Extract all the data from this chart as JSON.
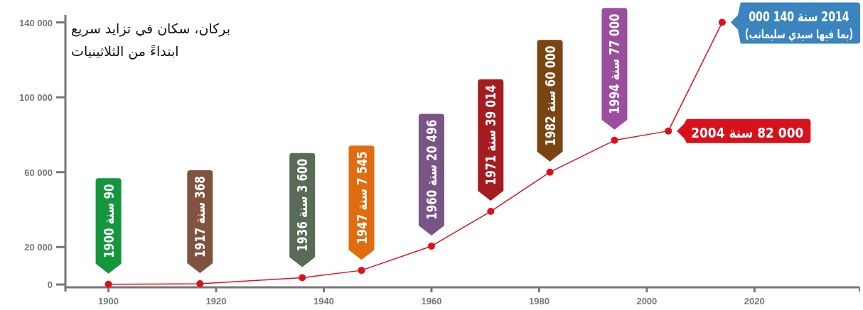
{
  "chart_data": {
    "type": "line",
    "title": "بركان، سكان في تزايد سريع\nابتداءً من الثلاثينيات",
    "x": [
      1900,
      1917,
      1936,
      1947,
      1960,
      1971,
      1982,
      1994,
      2004,
      2014
    ],
    "series": [
      {
        "color": "#e0101a",
        "values": [
          90,
          368,
          3600,
          7545,
          20496,
          39014,
          60000,
          77000,
          82000,
          140000
        ],
        "value_labels": [
          "90 سنة 1900",
          "368 سنة 1917",
          "3 600 سنة 1936",
          "7 545 سنة 1947",
          "20 496 سنة 1960",
          "39 014 سنة 1971",
          "60 000 سنة 1982",
          "77 000 سنة 1994",
          "82 000 سنة 2004",
          "2014 سنة 140 000\n(بما فيها سيدي سليمانب)"
        ]
      }
    ],
    "xlim": [
      1892,
      2039.5
    ],
    "ylim": [
      -1500,
      144000
    ],
    "xticks": [
      1900,
      1920,
      1940,
      1960,
      1980,
      2000,
      2020
    ],
    "yticks": [
      {
        "value": 0,
        "label": "0"
      },
      {
        "value": 20000,
        "label": "20 000"
      },
      {
        "value": 60000,
        "label": "60 000"
      },
      {
        "value": 100000,
        "label": "100 000"
      },
      {
        "value": 140000,
        "label": "140 000"
      }
    ],
    "marker": "circle"
  }
}
